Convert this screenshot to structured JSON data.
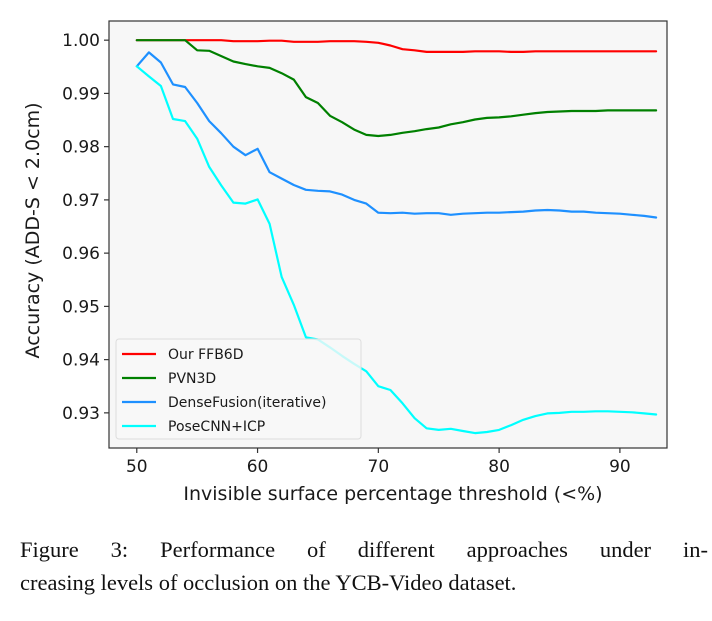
{
  "chart_data": {
    "type": "line",
    "title": "",
    "xlabel": "Invisible surface percentage threshold (<%)",
    "ylabel": "Accuracy (ADD-S < 2.0cm)",
    "xlim": [
      47.7,
      93.9
    ],
    "ylim": [
      0.9234,
      1.0036
    ],
    "xticks": [
      50,
      60,
      70,
      80,
      90
    ],
    "xtick_labels": [
      "50",
      "60",
      "70",
      "80",
      "90"
    ],
    "yticks": [
      0.93,
      0.94,
      0.95,
      0.96,
      0.97,
      0.98,
      0.99,
      1.0
    ],
    "ytick_labels": [
      "0.93",
      "0.94",
      "0.95",
      "0.96",
      "0.97",
      "0.98",
      "0.99",
      "1.00"
    ],
    "grid": false,
    "legend_position": "lower-left",
    "background": "#f7f7f7",
    "x": [
      50,
      51,
      52,
      53,
      54,
      55,
      56,
      57,
      58,
      59,
      60,
      61,
      62,
      63,
      64,
      65,
      66,
      67,
      68,
      69,
      70,
      71,
      72,
      73,
      74,
      75,
      76,
      77,
      78,
      79,
      80,
      81,
      82,
      83,
      84,
      85,
      86,
      87,
      88,
      89,
      90,
      91,
      92,
      93
    ],
    "series": [
      {
        "name": "Our FFB6D",
        "color": "#ff0000",
        "values": [
          1.0,
          1.0,
          1.0,
          1.0,
          1.0,
          1.0,
          1.0,
          1.0,
          0.9998,
          0.9998,
          0.9998,
          0.9999,
          0.9999,
          0.9997,
          0.9997,
          0.9997,
          0.9998,
          0.9998,
          0.9998,
          0.9997,
          0.9995,
          0.999,
          0.9983,
          0.9981,
          0.9978,
          0.9978,
          0.9978,
          0.9978,
          0.9979,
          0.9979,
          0.9979,
          0.9978,
          0.9978,
          0.9979,
          0.9979,
          0.9979,
          0.9979,
          0.9979,
          0.9979,
          0.9979,
          0.9979,
          0.9979,
          0.9979,
          0.9979
        ]
      },
      {
        "name": "PVN3D",
        "color": "#008000",
        "values": [
          1.0,
          1.0,
          1.0,
          1.0,
          1.0,
          0.9981,
          0.998,
          0.997,
          0.996,
          0.9955,
          0.9951,
          0.9948,
          0.9938,
          0.9926,
          0.9893,
          0.9882,
          0.9858,
          0.9846,
          0.9832,
          0.9822,
          0.982,
          0.9822,
          0.9826,
          0.9829,
          0.9833,
          0.9836,
          0.9842,
          0.9846,
          0.9851,
          0.9854,
          0.9855,
          0.9857,
          0.986,
          0.9863,
          0.9865,
          0.9866,
          0.9867,
          0.9867,
          0.9867,
          0.9868,
          0.9868,
          0.9868,
          0.9868,
          0.9868
        ]
      },
      {
        "name": "DenseFusion(iterative)",
        "color": "#1e90ff",
        "values": [
          0.9951,
          0.9977,
          0.9958,
          0.9917,
          0.9912,
          0.9882,
          0.9848,
          0.9825,
          0.98,
          0.9784,
          0.9796,
          0.9752,
          0.974,
          0.9728,
          0.9719,
          0.9717,
          0.9716,
          0.971,
          0.97,
          0.9693,
          0.9676,
          0.9675,
          0.9676,
          0.9674,
          0.9675,
          0.9675,
          0.9672,
          0.9674,
          0.9675,
          0.9676,
          0.9676,
          0.9677,
          0.9678,
          0.968,
          0.9681,
          0.968,
          0.9678,
          0.9678,
          0.9676,
          0.9675,
          0.9674,
          0.9672,
          0.967,
          0.9667
        ]
      },
      {
        "name": "PoseCNN+ICP",
        "color": "#00ffff",
        "values": [
          0.9951,
          0.9932,
          0.9914,
          0.9852,
          0.9848,
          0.9815,
          0.9762,
          0.9727,
          0.9695,
          0.9693,
          0.9701,
          0.9655,
          0.9555,
          0.9503,
          0.9442,
          0.9438,
          0.9423,
          0.9407,
          0.9392,
          0.9378,
          0.935,
          0.9343,
          0.9318,
          0.929,
          0.9271,
          0.9268,
          0.927,
          0.9266,
          0.9262,
          0.9264,
          0.9268,
          0.9277,
          0.9287,
          0.9294,
          0.9299,
          0.93,
          0.9302,
          0.9302,
          0.9303,
          0.9303,
          0.9302,
          0.9301,
          0.9299,
          0.9297
        ]
      }
    ]
  },
  "caption": {
    "line1": "Figure 3:  Performance of different approaches under in-",
    "line2": "creasing levels of occlusion on the YCB-Video dataset."
  }
}
